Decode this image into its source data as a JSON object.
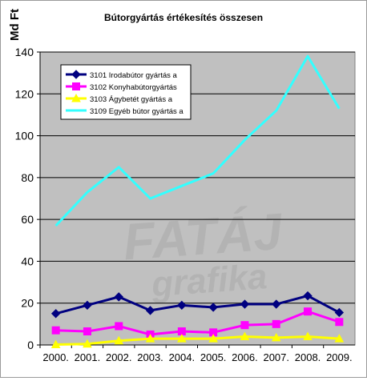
{
  "chart_data": {
    "type": "line",
    "title": "Bútorgyártás értékesítés összesen",
    "ylabel": "Md Ft",
    "xlabel": "",
    "categories": [
      "2000.",
      "2001.",
      "2002.",
      "2003.",
      "2004.",
      "2005.",
      "2006.",
      "2007.",
      "2008.",
      "2009."
    ],
    "ylim": [
      0,
      140
    ],
    "yticks": [
      0,
      20,
      40,
      60,
      80,
      100,
      120,
      140
    ],
    "grid": true,
    "legend_position": "top-left",
    "plot_background": "#c0c0c0",
    "watermark": [
      "FATÁJ",
      "grafika"
    ],
    "series": [
      {
        "name": "3101  Irodabútor gyártás a",
        "color": "#000080",
        "marker": "diamond",
        "values": [
          15,
          19,
          23,
          16.5,
          19,
          18,
          19.5,
          19.5,
          23.5,
          15.5
        ]
      },
      {
        "name": "3102  Konyhabútorgyártás",
        "color": "#ff00ff",
        "marker": "square",
        "values": [
          7,
          6.5,
          9,
          5,
          6.5,
          6,
          9.5,
          10,
          16,
          11
        ]
      },
      {
        "name": "3103  Ágybetét gyártás a",
        "color": "#ffff00",
        "marker": "triangle",
        "values": [
          0.2,
          0.5,
          2,
          3,
          3,
          3,
          4,
          3.5,
          4,
          3
        ]
      },
      {
        "name": "3109  Egyéb bútor gyártás a",
        "color": "#33ffff",
        "marker": "none",
        "values": [
          57,
          73,
          85,
          70,
          76,
          82,
          98,
          112,
          138,
          113
        ]
      }
    ]
  }
}
